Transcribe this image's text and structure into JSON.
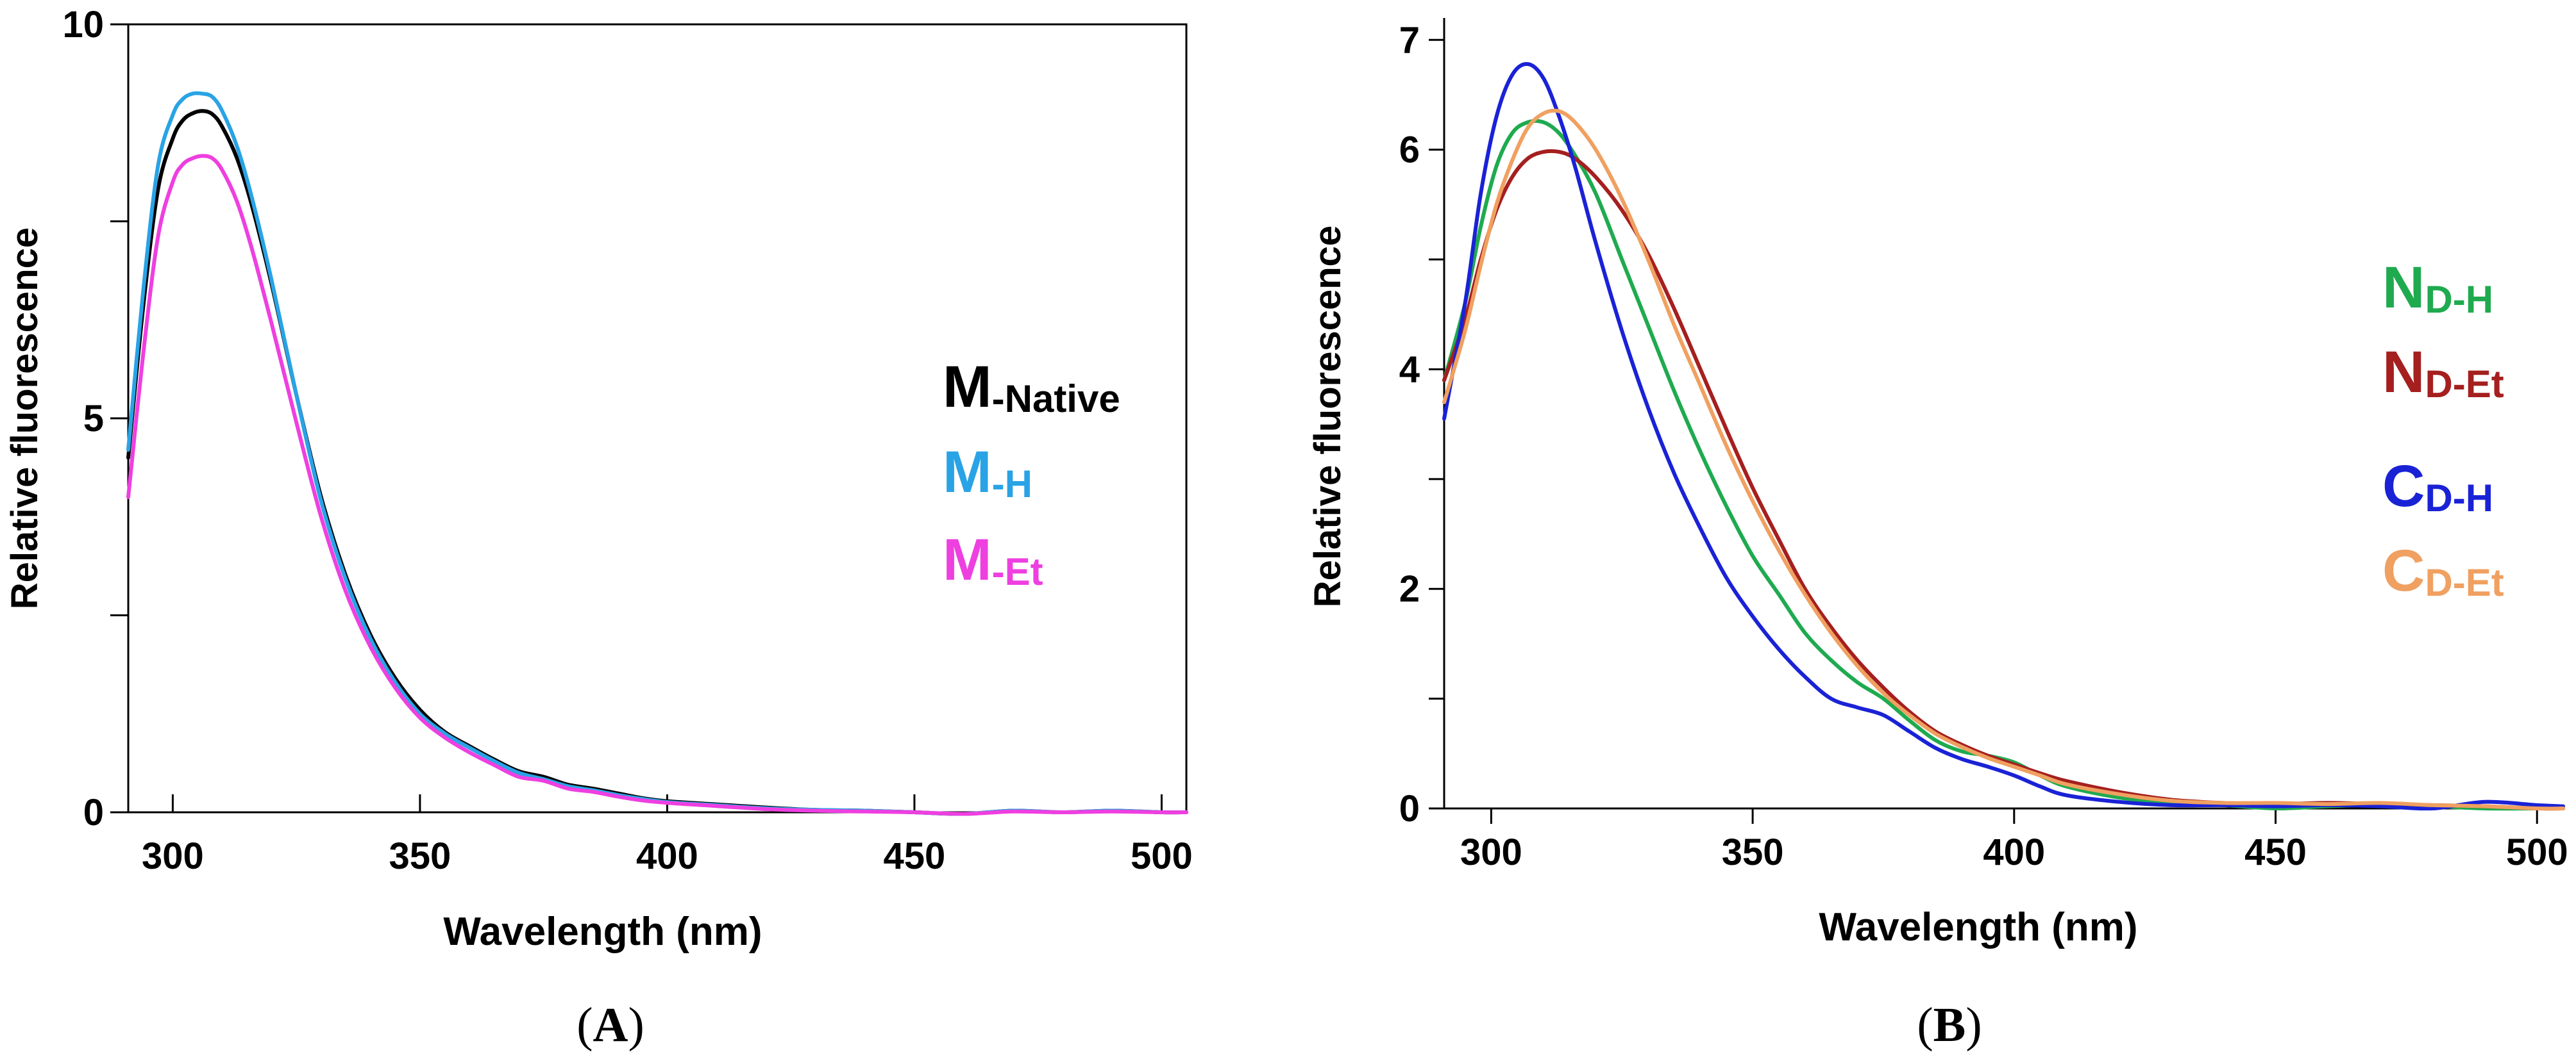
{
  "chart_data": [
    {
      "type": "line",
      "panel_label": "A",
      "xlabel": "Wavelength (nm)",
      "ylabel": "Relative  fluorescence",
      "xlim": [
        291,
        505
      ],
      "ylim": [
        0,
        10
      ],
      "x_ticks": [
        300,
        350,
        400,
        450,
        500
      ],
      "y_ticks_labeled": [
        0,
        5,
        10
      ],
      "y_ticks_minor": [
        2.5,
        7.5
      ],
      "grid": false,
      "legend_position": "right-middle",
      "series": [
        {
          "name": "M",
          "subscript": "-Native",
          "color": "#000000",
          "x": [
            291,
            294,
            297,
            300,
            302,
            304,
            306,
            308,
            310,
            313,
            316,
            320,
            325,
            330,
            335,
            340,
            345,
            350,
            355,
            360,
            365,
            370,
            375,
            380,
            385,
            390,
            395,
            400,
            410,
            420,
            430,
            440,
            450,
            460,
            470,
            480,
            490,
            500,
            505
          ],
          "y": [
            4.5,
            6.4,
            7.9,
            8.55,
            8.78,
            8.87,
            8.9,
            8.86,
            8.7,
            8.3,
            7.7,
            6.7,
            5.3,
            4.0,
            3.0,
            2.25,
            1.7,
            1.3,
            1.02,
            0.84,
            0.67,
            0.52,
            0.45,
            0.35,
            0.3,
            0.24,
            0.18,
            0.14,
            0.1,
            0.06,
            0.03,
            0.02,
            0.0,
            -0.02,
            0.02,
            0.0,
            0.02,
            0.0,
            0.0
          ]
        },
        {
          "name": "M",
          "subscript": "-H",
          "color": "#29a3e6",
          "x": [
            291,
            294,
            297,
            300,
            302,
            304,
            306,
            308,
            310,
            313,
            316,
            320,
            325,
            330,
            335,
            340,
            345,
            350,
            355,
            360,
            365,
            370,
            375,
            380,
            385,
            390,
            395,
            400,
            410,
            420,
            430,
            440,
            450,
            460,
            470,
            480,
            490,
            500,
            505
          ],
          "y": [
            4.6,
            6.6,
            8.2,
            8.85,
            9.05,
            9.12,
            9.12,
            9.08,
            8.9,
            8.45,
            7.8,
            6.75,
            5.3,
            3.95,
            2.95,
            2.2,
            1.65,
            1.25,
            1.0,
            0.82,
            0.65,
            0.5,
            0.42,
            0.33,
            0.28,
            0.22,
            0.17,
            0.13,
            0.09,
            0.05,
            0.03,
            0.02,
            0.0,
            -0.02,
            0.02,
            0.0,
            0.02,
            0.0,
            0.0
          ]
        },
        {
          "name": "M",
          "subscript": "-Et",
          "color": "#ee3fe0",
          "x": [
            291,
            294,
            297,
            300,
            302,
            304,
            306,
            308,
            310,
            313,
            316,
            320,
            325,
            330,
            335,
            340,
            345,
            350,
            355,
            360,
            365,
            370,
            375,
            380,
            385,
            390,
            395,
            400,
            410,
            420,
            430,
            440,
            450,
            460,
            470,
            480,
            490,
            500,
            505
          ],
          "y": [
            4.0,
            5.8,
            7.3,
            8.0,
            8.22,
            8.3,
            8.33,
            8.3,
            8.15,
            7.75,
            7.15,
            6.2,
            4.95,
            3.75,
            2.8,
            2.1,
            1.58,
            1.2,
            0.95,
            0.76,
            0.6,
            0.45,
            0.4,
            0.3,
            0.26,
            0.2,
            0.15,
            0.12,
            0.08,
            0.04,
            0.02,
            0.01,
            0.0,
            -0.02,
            0.01,
            0.0,
            0.01,
            0.0,
            0.0
          ]
        }
      ]
    },
    {
      "type": "line",
      "panel_label": "B",
      "xlabel": "Wavelength (nm)",
      "ylabel": "Relative fluorescence",
      "xlim": [
        291,
        505
      ],
      "ylim": [
        0,
        7.2
      ],
      "x_ticks": [
        300,
        350,
        400,
        450,
        500
      ],
      "y_ticks_labeled": [
        0,
        2,
        4,
        6,
        7
      ],
      "y_ticks_minor": [
        1,
        3,
        5
      ],
      "grid": false,
      "legend_position": "right-middle",
      "series": [
        {
          "name": "N",
          "subscript": "D-H",
          "color": "#1faa4f",
          "x": [
            291,
            295,
            298,
            301,
            304,
            307,
            310,
            313,
            316,
            320,
            325,
            330,
            335,
            340,
            345,
            350,
            355,
            360,
            365,
            370,
            375,
            380,
            385,
            390,
            395,
            400,
            405,
            410,
            420,
            430,
            440,
            450,
            460,
            470,
            480,
            490,
            500,
            505
          ],
          "y": [
            3.9,
            4.6,
            5.3,
            5.85,
            6.15,
            6.25,
            6.25,
            6.15,
            5.95,
            5.6,
            5.0,
            4.4,
            3.8,
            3.25,
            2.75,
            2.3,
            1.95,
            1.6,
            1.35,
            1.15,
            1.0,
            0.8,
            0.62,
            0.52,
            0.48,
            0.42,
            0.3,
            0.2,
            0.1,
            0.05,
            0.03,
            0.0,
            0.02,
            0.03,
            0.02,
            0.0,
            0.0,
            0.0
          ]
        },
        {
          "name": "N",
          "subscript": "D-Et",
          "color": "#a51f1f",
          "x": [
            291,
            295,
            298,
            301,
            304,
            307,
            310,
            313,
            316,
            320,
            325,
            330,
            335,
            340,
            345,
            350,
            355,
            360,
            365,
            370,
            375,
            380,
            385,
            390,
            395,
            400,
            405,
            410,
            420,
            430,
            440,
            450,
            460,
            470,
            480,
            490,
            500,
            505
          ],
          "y": [
            3.9,
            4.45,
            5.0,
            5.45,
            5.75,
            5.92,
            5.98,
            5.98,
            5.92,
            5.75,
            5.45,
            5.05,
            4.55,
            4.0,
            3.45,
            2.92,
            2.45,
            2.0,
            1.65,
            1.35,
            1.1,
            0.88,
            0.7,
            0.58,
            0.48,
            0.4,
            0.32,
            0.25,
            0.15,
            0.08,
            0.05,
            0.04,
            0.05,
            0.04,
            0.03,
            0.02,
            0.0,
            0.0
          ]
        },
        {
          "name": "C",
          "subscript": "D-H",
          "color": "#1a22d6",
          "x": [
            291,
            295,
            298,
            301,
            304,
            307,
            310,
            313,
            316,
            320,
            325,
            330,
            335,
            340,
            345,
            350,
            355,
            360,
            365,
            370,
            375,
            380,
            385,
            390,
            395,
            400,
            405,
            410,
            420,
            430,
            440,
            450,
            460,
            470,
            480,
            490,
            500,
            505
          ],
          "y": [
            3.55,
            4.6,
            5.6,
            6.3,
            6.68,
            6.78,
            6.65,
            6.3,
            5.85,
            5.15,
            4.35,
            3.65,
            3.05,
            2.55,
            2.1,
            1.75,
            1.45,
            1.2,
            1.0,
            0.92,
            0.85,
            0.7,
            0.55,
            0.45,
            0.38,
            0.3,
            0.2,
            0.12,
            0.06,
            0.03,
            0.03,
            0.02,
            0.03,
            0.02,
            0.0,
            0.06,
            0.03,
            0.02
          ]
        },
        {
          "name": "C",
          "subscript": "D-Et",
          "color": "#f0a060",
          "x": [
            291,
            295,
            298,
            301,
            304,
            307,
            310,
            313,
            316,
            320,
            325,
            330,
            335,
            340,
            345,
            350,
            355,
            360,
            365,
            370,
            375,
            380,
            385,
            390,
            395,
            400,
            405,
            410,
            420,
            430,
            440,
            450,
            460,
            470,
            480,
            490,
            500,
            505
          ],
          "y": [
            3.7,
            4.35,
            4.95,
            5.5,
            5.9,
            6.2,
            6.33,
            6.35,
            6.25,
            6.0,
            5.55,
            5.0,
            4.4,
            3.85,
            3.3,
            2.8,
            2.35,
            1.95,
            1.6,
            1.3,
            1.05,
            0.85,
            0.68,
            0.56,
            0.46,
            0.38,
            0.3,
            0.22,
            0.13,
            0.07,
            0.05,
            0.05,
            0.04,
            0.05,
            0.03,
            0.02,
            0.0,
            0.0
          ]
        }
      ]
    }
  ]
}
